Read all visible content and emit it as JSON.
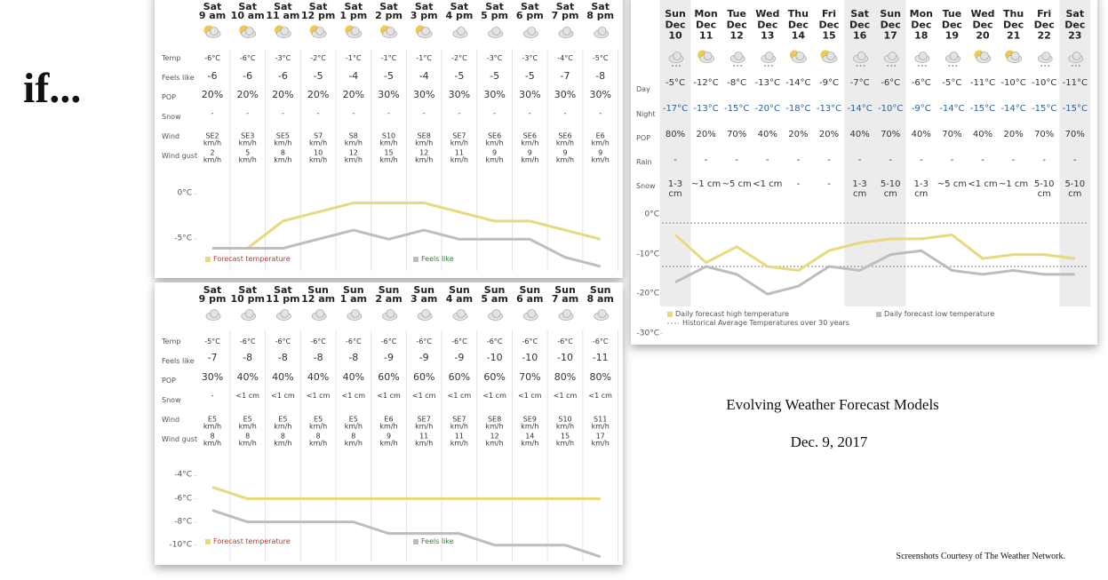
{
  "intro": "if...",
  "title": "Evolving Weather Forecast Models",
  "date": "Dec. 9, 2017",
  "credit": "Screenshots Courtesy of The Weather Network.",
  "hourly_panels": [
    {
      "days": [
        "Sat",
        "Sat",
        "Sat",
        "Sat",
        "Sat",
        "Sat",
        "Sat",
        "Sat",
        "Sat",
        "Sat",
        "Sat",
        "Sat"
      ],
      "times": [
        "9 am",
        "10 am",
        "11 am",
        "12 pm",
        "1 pm",
        "2 pm",
        "3 pm",
        "4 pm",
        "5 pm",
        "6 pm",
        "7 pm",
        "8 pm"
      ],
      "row_labels": [
        "Temp",
        "Feels like",
        "POP",
        "Snow",
        "Wind",
        "Wind gust"
      ],
      "temp": [
        "-6°C",
        "-6°C",
        "-3°C",
        "-2°C",
        "-1°C",
        "-1°C",
        "-1°C",
        "-2°C",
        "-3°C",
        "-3°C",
        "-4°C",
        "-5°C"
      ],
      "feels_like": [
        "-6",
        "-6",
        "-6",
        "-5",
        "-4",
        "-5",
        "-4",
        "-5",
        "-5",
        "-5",
        "-7",
        "-8"
      ],
      "pop": [
        "20%",
        "20%",
        "20%",
        "20%",
        "20%",
        "30%",
        "30%",
        "30%",
        "30%",
        "30%",
        "30%",
        "30%"
      ],
      "snow": [
        "-",
        "-",
        "-",
        "-",
        "-",
        "-",
        "-",
        "-",
        "-",
        "-",
        "-",
        "-"
      ],
      "wind": [
        "SE2 km/h",
        "SE3 km/h",
        "SE5 km/h",
        "S7 km/h",
        "S8 km/h",
        "S10 km/h",
        "SE8 km/h",
        "SE7 km/h",
        "SE6 km/h",
        "SE6 km/h",
        "SE6 km/h",
        "E6 km/h"
      ],
      "wind_gust": [
        "2 km/h",
        "5 km/h",
        "8 km/h",
        "10 km/h",
        "12 km/h",
        "15 km/h",
        "12 km/h",
        "11 km/h",
        "9 km/h",
        "9 km/h",
        "9 km/h",
        "9 km/h"
      ],
      "chart": {
        "type": "line",
        "ylim": [
          -8.5,
          1.3
        ],
        "yticks": [
          {
            "value": 0,
            "label": "0°C"
          },
          {
            "value": -5,
            "label": "-5°C"
          }
        ],
        "series": [
          {
            "name": "Forecast temperature",
            "color": "#e8d97c",
            "values": [
              -6,
              -6,
              -3,
              -2,
              -1,
              -1,
              -1,
              -2,
              -3,
              -3,
              -4,
              -5
            ]
          },
          {
            "name": "Feels like",
            "color": "#bdbdbd",
            "values": [
              -6,
              -6,
              -6,
              -5,
              -4,
              -5,
              -4,
              -5,
              -5,
              -5,
              -7,
              -8
            ]
          }
        ]
      }
    },
    {
      "days": [
        "Sat",
        "Sat",
        "Sat",
        "Sun",
        "Sun",
        "Sun",
        "Sun",
        "Sun",
        "Sun",
        "Sun",
        "Sun",
        "Sun"
      ],
      "times": [
        "9 pm",
        "10 pm",
        "11 pm",
        "12 am",
        "1 am",
        "2 am",
        "3 am",
        "4 am",
        "5 am",
        "6 am",
        "7 am",
        "8 am"
      ],
      "row_labels": [
        "Temp",
        "Feels like",
        "POP",
        "Snow",
        "Wind",
        "Wind gust"
      ],
      "temp": [
        "-5°C",
        "-6°C",
        "-6°C",
        "-6°C",
        "-6°C",
        "-6°C",
        "-6°C",
        "-6°C",
        "-6°C",
        "-6°C",
        "-6°C",
        "-6°C"
      ],
      "feels_like": [
        "-7",
        "-8",
        "-8",
        "-8",
        "-8",
        "-9",
        "-9",
        "-9",
        "-10",
        "-10",
        "-10",
        "-11"
      ],
      "pop": [
        "30%",
        "40%",
        "40%",
        "40%",
        "40%",
        "60%",
        "60%",
        "60%",
        "60%",
        "70%",
        "80%",
        "80%"
      ],
      "snow": [
        "-",
        "<1 cm",
        "<1 cm",
        "<1 cm",
        "<1 cm",
        "<1 cm",
        "<1 cm",
        "<1 cm",
        "<1 cm",
        "<1 cm",
        "<1 cm",
        "<1 cm"
      ],
      "wind": [
        "E5 km/h",
        "E5 km/h",
        "E5 km/h",
        "E5 km/h",
        "E5 km/h",
        "E6 km/h",
        "SE7 km/h",
        "SE7 km/h",
        "SE8 km/h",
        "SE9 km/h",
        "S10 km/h",
        "S11 km/h"
      ],
      "wind_gust": [
        "8 km/h",
        "8 km/h",
        "8 km/h",
        "8 km/h",
        "8 km/h",
        "9 km/h",
        "11 km/h",
        "11 km/h",
        "12 km/h",
        "14 km/h",
        "15 km/h",
        "17 km/h"
      ],
      "chart": {
        "type": "line",
        "ylim": [
          -11.4,
          -3.2
        ],
        "yticks": [
          {
            "value": -4,
            "label": "-4°C"
          },
          {
            "value": -6,
            "label": "-6°C"
          },
          {
            "value": -8,
            "label": "-8°C"
          },
          {
            "value": -10,
            "label": "-10°C"
          }
        ],
        "series": [
          {
            "name": "Forecast temperature",
            "color": "#e8d97c",
            "values": [
              -5,
              -6,
              -6,
              -6,
              -6,
              -6,
              -6,
              -6,
              -6,
              -6,
              -6,
              -6
            ]
          },
          {
            "name": "Feels like",
            "color": "#bdbdbd",
            "values": [
              -7,
              -8,
              -8,
              -8,
              -8,
              -9,
              -9,
              -9,
              -10,
              -10,
              -10,
              -11
            ]
          }
        ]
      }
    }
  ],
  "daily_panel": {
    "days": [
      "Sun",
      "Mon",
      "Tue",
      "Wed",
      "Thu",
      "Fri",
      "Sat",
      "Sun",
      "Mon",
      "Tue",
      "Wed",
      "Thu",
      "Fri",
      "Sat"
    ],
    "dates": [
      "Dec 10",
      "Dec 11",
      "Dec 12",
      "Dec 13",
      "Dec 14",
      "Dec 15",
      "Dec 16",
      "Dec 17",
      "Dec 18",
      "Dec 19",
      "Dec 20",
      "Dec 21",
      "Dec 22",
      "Dec 23"
    ],
    "shaded_columns": [
      0,
      6,
      7,
      13
    ],
    "row_labels": [
      "Day",
      "Night",
      "POP",
      "Rain",
      "Snow"
    ],
    "day": [
      "-5°C",
      "-12°C",
      "-8°C",
      "-13°C",
      "-14°C",
      "-9°C",
      "-7°C",
      "-6°C",
      "-6°C",
      "-5°C",
      "-11°C",
      "-10°C",
      "-10°C",
      "-11°C"
    ],
    "night": [
      "-17°C",
      "-13°C",
      "-15°C",
      "-20°C",
      "-18°C",
      "-13°C",
      "-14°C",
      "-10°C",
      "-9°C",
      "-14°C",
      "-15°C",
      "-14°C",
      "-15°C",
      "-15°C"
    ],
    "pop": [
      "80%",
      "20%",
      "70%",
      "40%",
      "20%",
      "20%",
      "40%",
      "70%",
      "40%",
      "70%",
      "40%",
      "20%",
      "70%",
      "70%"
    ],
    "rain": [
      "-",
      "-",
      "-",
      "-",
      "-",
      "-",
      "-",
      "-",
      "-",
      "-",
      "-",
      "-",
      "-",
      "-"
    ],
    "snow": [
      "1-3 cm",
      "~1 cm",
      "~5 cm",
      "<1 cm",
      "-",
      "-",
      "1-3 cm",
      "5-10 cm",
      "1-3 cm",
      "~5 cm",
      "<1 cm",
      "~1 cm",
      "5-10 cm",
      "5-10 cm"
    ],
    "chart": {
      "type": "line",
      "ylim": [
        -31,
        2.3
      ],
      "yticks": [
        {
          "value": 0,
          "label": "0°C"
        },
        {
          "value": -10,
          "label": "-10°C"
        },
        {
          "value": -20,
          "label": "-20°C"
        },
        {
          "value": -30,
          "label": "-30°C"
        }
      ],
      "series": [
        {
          "name": "Daily forecast high temperature",
          "color": "#e8d97c",
          "values": [
            -5,
            -12,
            -8,
            -13,
            -14,
            -9,
            -7,
            -6,
            -6,
            -5,
            -11,
            -10,
            -10,
            -11
          ]
        },
        {
          "name": "Daily forecast low temperature",
          "color": "#bdbdbd",
          "values": [
            -17,
            -13,
            -15,
            -20,
            -18,
            -13,
            -14,
            -10,
            -9,
            -14,
            -15,
            -14,
            -15,
            -15
          ]
        }
      ],
      "reference_lines": {
        "name": "Historical Average Temperatures over 30 years",
        "color": "#999999",
        "values": [
          -2,
          -13
        ]
      }
    }
  }
}
